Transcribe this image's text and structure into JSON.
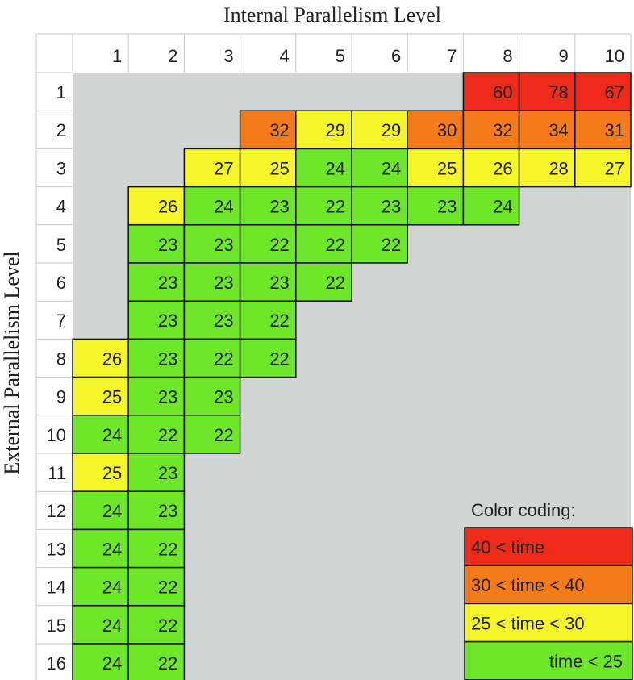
{
  "chart_data": {
    "type": "heatmap",
    "xlabel": "Internal Parallelism Level",
    "ylabel": "External Parallelism Level",
    "x_categories": [
      "1",
      "2",
      "3",
      "4",
      "5",
      "6",
      "7",
      "8",
      "9",
      "10"
    ],
    "y_categories": [
      "1",
      "2",
      "3",
      "4",
      "5",
      "6",
      "7",
      "8",
      "9",
      "10",
      "11",
      "12",
      "13",
      "14",
      "15",
      "16"
    ],
    "cells": [
      {
        "row": 1,
        "col": 8,
        "value": 60
      },
      {
        "row": 1,
        "col": 9,
        "value": 78
      },
      {
        "row": 1,
        "col": 10,
        "value": 67
      },
      {
        "row": 2,
        "col": 4,
        "value": 32
      },
      {
        "row": 2,
        "col": 5,
        "value": 29
      },
      {
        "row": 2,
        "col": 6,
        "value": 29
      },
      {
        "row": 2,
        "col": 7,
        "value": 30
      },
      {
        "row": 2,
        "col": 8,
        "value": 32
      },
      {
        "row": 2,
        "col": 9,
        "value": 34
      },
      {
        "row": 2,
        "col": 10,
        "value": 31
      },
      {
        "row": 3,
        "col": 3,
        "value": 27
      },
      {
        "row": 3,
        "col": 4,
        "value": 25
      },
      {
        "row": 3,
        "col": 5,
        "value": 24
      },
      {
        "row": 3,
        "col": 6,
        "value": 24
      },
      {
        "row": 3,
        "col": 7,
        "value": 25
      },
      {
        "row": 3,
        "col": 8,
        "value": 26
      },
      {
        "row": 3,
        "col": 9,
        "value": 28
      },
      {
        "row": 3,
        "col": 10,
        "value": 27
      },
      {
        "row": 4,
        "col": 2,
        "value": 26
      },
      {
        "row": 4,
        "col": 3,
        "value": 24
      },
      {
        "row": 4,
        "col": 4,
        "value": 23
      },
      {
        "row": 4,
        "col": 5,
        "value": 22
      },
      {
        "row": 4,
        "col": 6,
        "value": 23
      },
      {
        "row": 4,
        "col": 7,
        "value": 23
      },
      {
        "row": 4,
        "col": 8,
        "value": 24
      },
      {
        "row": 5,
        "col": 2,
        "value": 23
      },
      {
        "row": 5,
        "col": 3,
        "value": 23
      },
      {
        "row": 5,
        "col": 4,
        "value": 22
      },
      {
        "row": 5,
        "col": 5,
        "value": 22
      },
      {
        "row": 5,
        "col": 6,
        "value": 22
      },
      {
        "row": 6,
        "col": 2,
        "value": 23
      },
      {
        "row": 6,
        "col": 3,
        "value": 23
      },
      {
        "row": 6,
        "col": 4,
        "value": 23
      },
      {
        "row": 6,
        "col": 5,
        "value": 22
      },
      {
        "row": 7,
        "col": 2,
        "value": 23
      },
      {
        "row": 7,
        "col": 3,
        "value": 23
      },
      {
        "row": 7,
        "col": 4,
        "value": 22
      },
      {
        "row": 8,
        "col": 1,
        "value": 26
      },
      {
        "row": 8,
        "col": 2,
        "value": 23
      },
      {
        "row": 8,
        "col": 3,
        "value": 22
      },
      {
        "row": 8,
        "col": 4,
        "value": 22
      },
      {
        "row": 9,
        "col": 1,
        "value": 25
      },
      {
        "row": 9,
        "col": 2,
        "value": 23
      },
      {
        "row": 9,
        "col": 3,
        "value": 23
      },
      {
        "row": 10,
        "col": 1,
        "value": 24
      },
      {
        "row": 10,
        "col": 2,
        "value": 22
      },
      {
        "row": 10,
        "col": 3,
        "value": 22
      },
      {
        "row": 11,
        "col": 1,
        "value": 25
      },
      {
        "row": 11,
        "col": 2,
        "value": 23
      },
      {
        "row": 12,
        "col": 1,
        "value": 24
      },
      {
        "row": 12,
        "col": 2,
        "value": 23
      },
      {
        "row": 13,
        "col": 1,
        "value": 24
      },
      {
        "row": 13,
        "col": 2,
        "value": 22
      },
      {
        "row": 14,
        "col": 1,
        "value": 24
      },
      {
        "row": 14,
        "col": 2,
        "value": 22
      },
      {
        "row": 15,
        "col": 1,
        "value": 24
      },
      {
        "row": 15,
        "col": 2,
        "value": 22
      },
      {
        "row": 16,
        "col": 1,
        "value": 24
      },
      {
        "row": 16,
        "col": 2,
        "value": 22
      }
    ],
    "color_scale": [
      {
        "label": "40 < time",
        "min": 40,
        "max": null,
        "color": "#ee2a1a"
      },
      {
        "label": "30 < time < 40",
        "min": 30,
        "max": 40,
        "color": "#f47a1a"
      },
      {
        "label": "25 < time < 30",
        "min": 25,
        "max": 30,
        "color": "#f5f52a"
      },
      {
        "label": "time < 25",
        "min": null,
        "max": 25,
        "color": "#6ee62a"
      }
    ],
    "legend_title": "Color coding:",
    "legend_placement": "bottom-right",
    "background_color": "#d3d5d5",
    "header_color": "#ffffff"
  }
}
